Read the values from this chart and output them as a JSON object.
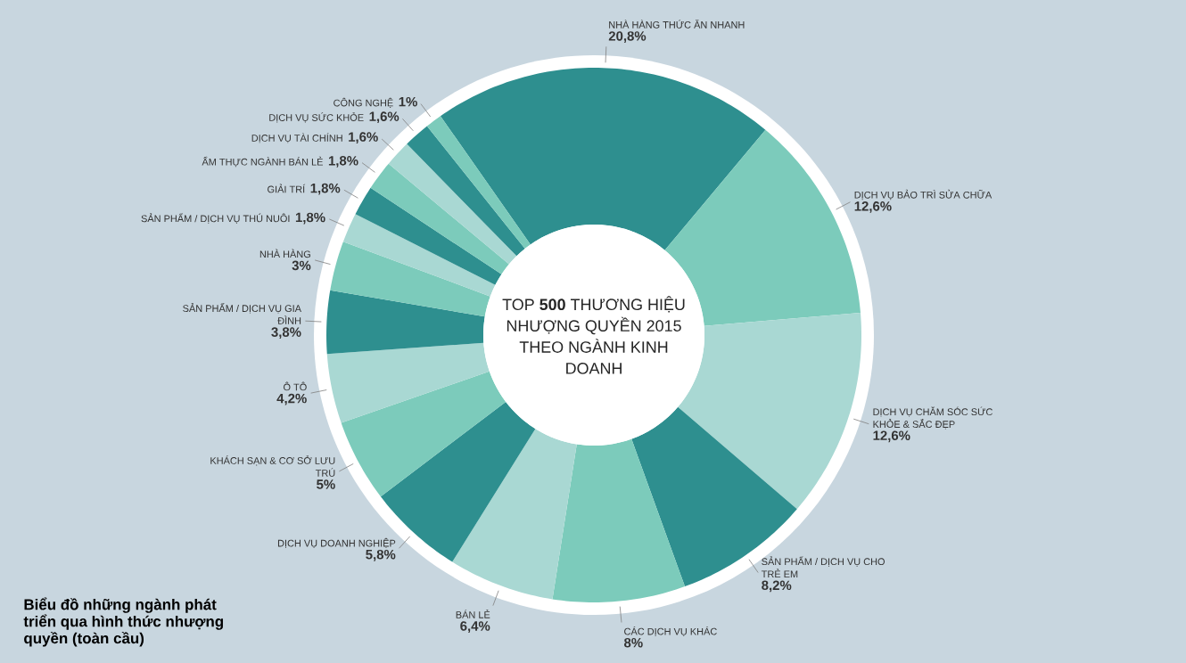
{
  "chart_data": {
    "type": "donut",
    "title": "TOP **500** THƯƠNG HIỆU NHƯỢNG QUYỀN 2015 THEO NGÀNH KINH DOANH",
    "categories": [
      "NHÀ HÀNG THỨC ĂN NHANH",
      "DỊCH VỤ BẢO TRÌ SỬA CHỮA",
      "DỊCH VỤ CHĂM SÓC SỨC KHỎE & SẮC ĐẸP",
      "SẢN PHẨM / DỊCH VỤ CHO TRẺ EM",
      "CÁC DỊCH VỤ KHÁC",
      "BÁN LẺ",
      "DỊCH VỤ DOANH NGHIỆP",
      "KHÁCH SẠN & CƠ SỞ LƯU TRÚ",
      "Ô TÔ",
      "SẢN PHẨM / DỊCH VỤ GIA ĐÌNH",
      "NHÀ HÀNG",
      "SẢN PHẨM / DỊCH VỤ THÚ NUÔI",
      "GIẢI TRÍ",
      "ẨM THỰC NGÀNH BÁN LẺ",
      "DỊCH VỤ TÀI CHÍNH",
      "DỊCH VỤ SỨC KHỎE",
      "CÔNG NGHỆ"
    ],
    "values": [
      20.8,
      12.6,
      12.6,
      8.2,
      8,
      6.4,
      5.8,
      5,
      4.2,
      3.8,
      3,
      1.8,
      1.8,
      1.8,
      1.6,
      1.6,
      1
    ],
    "value_labels": [
      "20,8%",
      "12,6%",
      "12,6%",
      "8,2%",
      "8%",
      "6,4%",
      "5,8%",
      "5%",
      "4,2%",
      "3,8%",
      "3%",
      "1,8%",
      "1,8%",
      "1,8%",
      "1,6%",
      "1,6%",
      "1%"
    ],
    "colors": [
      "#2e8f8f",
      "#7ccbbb",
      "#a9d8d3",
      "#2e8f8f",
      "#7ccbbb",
      "#a9d8d3",
      "#2e8f8f",
      "#7ccbbb",
      "#a9d8d3",
      "#2e8f8f",
      "#7ccbbb",
      "#a9d8d3",
      "#2e8f8f",
      "#7ccbbb",
      "#a9d8d3",
      "#2e8f8f",
      "#7ccbbb"
    ],
    "annotations": [
      "Biểu đồ những ngành phát triển qua hình thức nhượng quyền (toàn cầu)"
    ]
  }
}
